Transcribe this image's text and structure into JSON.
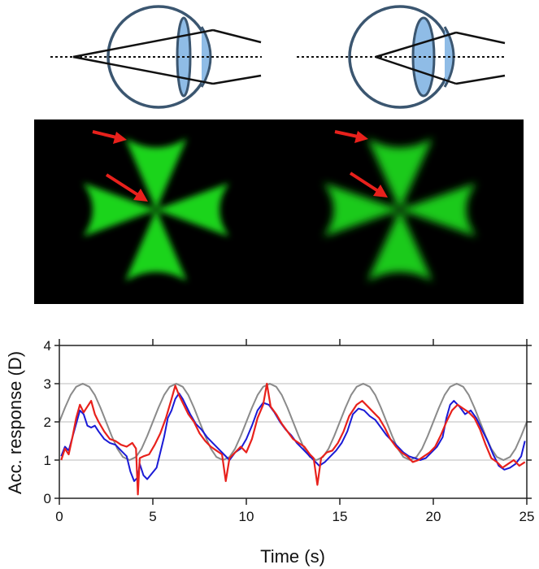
{
  "colors": {
    "eye_outline": "#3b5670",
    "lens_fill": "#8fbce6",
    "ray": "#111111",
    "panel_bg": "#000000",
    "cross_green": "#1fe61f",
    "arrow_red": "#e8211c",
    "target_gray": "#8a8a8a",
    "series_blue": "#1a1ad6",
    "series_red": "#e8211c",
    "grid": "#d2d2d2"
  },
  "chart_data": {
    "type": "line",
    "title": "",
    "xlabel": "Time (s)",
    "ylabel": "Acc. response (D)",
    "xlim": [
      0,
      25
    ],
    "ylim": [
      0,
      4
    ],
    "x_ticks": [
      0,
      5,
      10,
      15,
      20,
      25
    ],
    "y_ticks": [
      0,
      1,
      2,
      3,
      4
    ],
    "grid": "horizontal",
    "series": [
      {
        "color": "#8a8a8a",
        "points": [
          [
            0,
            2.0
          ],
          [
            0.3,
            2.37
          ],
          [
            0.6,
            2.7
          ],
          [
            0.9,
            2.92
          ],
          [
            1.25,
            3.0
          ],
          [
            1.6,
            2.92
          ],
          [
            1.9,
            2.7
          ],
          [
            2.2,
            2.37
          ],
          [
            2.5,
            2.0
          ],
          [
            2.8,
            1.63
          ],
          [
            3.1,
            1.3
          ],
          [
            3.4,
            1.08
          ],
          [
            3.75,
            1.0
          ],
          [
            4.1,
            1.08
          ],
          [
            4.4,
            1.3
          ],
          [
            4.7,
            1.63
          ],
          [
            5.0,
            2.0
          ],
          [
            5.3,
            2.37
          ],
          [
            5.6,
            2.7
          ],
          [
            5.9,
            2.92
          ],
          [
            6.25,
            3.0
          ],
          [
            6.6,
            2.92
          ],
          [
            6.9,
            2.7
          ],
          [
            7.2,
            2.37
          ],
          [
            7.5,
            2.0
          ],
          [
            7.8,
            1.63
          ],
          [
            8.1,
            1.3
          ],
          [
            8.4,
            1.08
          ],
          [
            8.75,
            1.0
          ],
          [
            9.1,
            1.08
          ],
          [
            9.4,
            1.3
          ],
          [
            9.7,
            1.63
          ],
          [
            10.0,
            2.0
          ],
          [
            10.3,
            2.37
          ],
          [
            10.6,
            2.7
          ],
          [
            10.9,
            2.92
          ],
          [
            11.25,
            3.0
          ],
          [
            11.6,
            2.92
          ],
          [
            11.9,
            2.7
          ],
          [
            12.2,
            2.37
          ],
          [
            12.5,
            2.0
          ],
          [
            12.8,
            1.63
          ],
          [
            13.1,
            1.3
          ],
          [
            13.4,
            1.08
          ],
          [
            13.75,
            1.0
          ],
          [
            14.1,
            1.08
          ],
          [
            14.4,
            1.3
          ],
          [
            14.7,
            1.63
          ],
          [
            15.0,
            2.0
          ],
          [
            15.3,
            2.37
          ],
          [
            15.6,
            2.7
          ],
          [
            15.9,
            2.92
          ],
          [
            16.25,
            3.0
          ],
          [
            16.6,
            2.92
          ],
          [
            16.9,
            2.7
          ],
          [
            17.2,
            2.37
          ],
          [
            17.5,
            2.0
          ],
          [
            17.8,
            1.63
          ],
          [
            18.1,
            1.3
          ],
          [
            18.4,
            1.08
          ],
          [
            18.75,
            1.0
          ],
          [
            19.1,
            1.08
          ],
          [
            19.4,
            1.3
          ],
          [
            19.7,
            1.63
          ],
          [
            20.0,
            2.0
          ],
          [
            20.3,
            2.37
          ],
          [
            20.6,
            2.7
          ],
          [
            20.9,
            2.92
          ],
          [
            21.25,
            3.0
          ],
          [
            21.6,
            2.92
          ],
          [
            21.9,
            2.7
          ],
          [
            22.2,
            2.37
          ],
          [
            22.5,
            2.0
          ],
          [
            22.8,
            1.63
          ],
          [
            23.1,
            1.3
          ],
          [
            23.4,
            1.08
          ],
          [
            23.75,
            1.0
          ],
          [
            24.1,
            1.08
          ],
          [
            24.4,
            1.3
          ],
          [
            24.7,
            1.63
          ],
          [
            25.0,
            2.0
          ]
        ]
      },
      {
        "color": "#1a1ad6",
        "points": [
          [
            0.1,
            1.1
          ],
          [
            0.3,
            1.35
          ],
          [
            0.5,
            1.25
          ],
          [
            0.7,
            1.6
          ],
          [
            0.9,
            1.95
          ],
          [
            1.1,
            2.3
          ],
          [
            1.3,
            2.2
          ],
          [
            1.5,
            1.9
          ],
          [
            1.7,
            1.85
          ],
          [
            1.9,
            1.9
          ],
          [
            2.1,
            1.75
          ],
          [
            2.4,
            1.55
          ],
          [
            2.7,
            1.45
          ],
          [
            3.0,
            1.4
          ],
          [
            3.3,
            1.25
          ],
          [
            3.6,
            1.1
          ],
          [
            3.8,
            0.7
          ],
          [
            4.0,
            0.45
          ],
          [
            4.2,
            0.55
          ],
          [
            4.3,
            0.9
          ],
          [
            4.5,
            0.6
          ],
          [
            4.7,
            0.5
          ],
          [
            5.2,
            0.8
          ],
          [
            5.4,
            1.2
          ],
          [
            5.6,
            1.6
          ],
          [
            5.8,
            2.1
          ],
          [
            6.0,
            2.3
          ],
          [
            6.2,
            2.6
          ],
          [
            6.4,
            2.75
          ],
          [
            6.6,
            2.6
          ],
          [
            6.8,
            2.4
          ],
          [
            7.0,
            2.2
          ],
          [
            7.3,
            1.95
          ],
          [
            7.6,
            1.8
          ],
          [
            7.9,
            1.6
          ],
          [
            8.2,
            1.45
          ],
          [
            8.5,
            1.3
          ],
          [
            8.8,
            1.15
          ],
          [
            9.1,
            1.0
          ],
          [
            9.4,
            1.2
          ],
          [
            9.7,
            1.3
          ],
          [
            10.0,
            1.55
          ],
          [
            10.3,
            1.9
          ],
          [
            10.6,
            2.3
          ],
          [
            10.9,
            2.5
          ],
          [
            11.2,
            2.45
          ],
          [
            11.5,
            2.25
          ],
          [
            11.8,
            2.0
          ],
          [
            12.1,
            1.8
          ],
          [
            12.4,
            1.65
          ],
          [
            12.7,
            1.45
          ],
          [
            13.0,
            1.3
          ],
          [
            13.3,
            1.15
          ],
          [
            13.6,
            1.0
          ],
          [
            13.9,
            0.85
          ],
          [
            14.2,
            0.95
          ],
          [
            14.5,
            1.1
          ],
          [
            14.8,
            1.25
          ],
          [
            15.1,
            1.45
          ],
          [
            15.4,
            1.75
          ],
          [
            15.7,
            2.2
          ],
          [
            16.0,
            2.35
          ],
          [
            16.3,
            2.3
          ],
          [
            16.6,
            2.15
          ],
          [
            16.9,
            2.05
          ],
          [
            17.2,
            1.85
          ],
          [
            17.5,
            1.65
          ],
          [
            17.8,
            1.5
          ],
          [
            18.1,
            1.35
          ],
          [
            18.4,
            1.2
          ],
          [
            18.7,
            1.1
          ],
          [
            19.0,
            1.05
          ],
          [
            19.3,
            1.0
          ],
          [
            19.6,
            1.05
          ],
          [
            19.9,
            1.2
          ],
          [
            20.2,
            1.35
          ],
          [
            20.5,
            1.6
          ],
          [
            20.7,
            2.1
          ],
          [
            20.9,
            2.45
          ],
          [
            21.1,
            2.55
          ],
          [
            21.4,
            2.4
          ],
          [
            21.7,
            2.2
          ],
          [
            22.0,
            2.3
          ],
          [
            22.3,
            2.1
          ],
          [
            22.6,
            1.8
          ],
          [
            22.9,
            1.5
          ],
          [
            23.2,
            1.15
          ],
          [
            23.5,
            0.85
          ],
          [
            23.8,
            0.75
          ],
          [
            24.1,
            0.8
          ],
          [
            24.4,
            0.9
          ],
          [
            24.7,
            1.1
          ],
          [
            24.9,
            1.5
          ]
        ]
      },
      {
        "color": "#e8211c",
        "points": [
          [
            0.1,
            1.0
          ],
          [
            0.3,
            1.3
          ],
          [
            0.5,
            1.15
          ],
          [
            0.7,
            1.6
          ],
          [
            0.9,
            2.1
          ],
          [
            1.1,
            2.45
          ],
          [
            1.3,
            2.25
          ],
          [
            1.5,
            2.4
          ],
          [
            1.7,
            2.55
          ],
          [
            1.9,
            2.2
          ],
          [
            2.1,
            2.0
          ],
          [
            2.4,
            1.75
          ],
          [
            2.7,
            1.55
          ],
          [
            3.0,
            1.5
          ],
          [
            3.3,
            1.4
          ],
          [
            3.6,
            1.35
          ],
          [
            3.9,
            1.45
          ],
          [
            4.1,
            1.3
          ],
          [
            4.2,
            0.1
          ],
          [
            4.3,
            1.05
          ],
          [
            4.5,
            1.1
          ],
          [
            4.8,
            1.15
          ],
          [
            5.1,
            1.4
          ],
          [
            5.4,
            1.7
          ],
          [
            5.7,
            2.1
          ],
          [
            6.0,
            2.6
          ],
          [
            6.2,
            2.95
          ],
          [
            6.4,
            2.7
          ],
          [
            6.6,
            2.5
          ],
          [
            6.9,
            2.2
          ],
          [
            7.2,
            2.0
          ],
          [
            7.5,
            1.7
          ],
          [
            7.8,
            1.5
          ],
          [
            8.1,
            1.35
          ],
          [
            8.4,
            1.25
          ],
          [
            8.7,
            1.15
          ],
          [
            8.9,
            0.45
          ],
          [
            9.1,
            1.05
          ],
          [
            9.4,
            1.2
          ],
          [
            9.7,
            1.35
          ],
          [
            10.0,
            1.2
          ],
          [
            10.3,
            1.55
          ],
          [
            10.6,
            2.1
          ],
          [
            10.9,
            2.45
          ],
          [
            11.1,
            3.0
          ],
          [
            11.3,
            2.4
          ],
          [
            11.6,
            2.2
          ],
          [
            11.9,
            1.95
          ],
          [
            12.2,
            1.75
          ],
          [
            12.5,
            1.55
          ],
          [
            12.8,
            1.45
          ],
          [
            13.1,
            1.35
          ],
          [
            13.4,
            1.15
          ],
          [
            13.6,
            1.05
          ],
          [
            13.8,
            0.35
          ],
          [
            14.0,
            1.05
          ],
          [
            14.3,
            1.2
          ],
          [
            14.6,
            1.25
          ],
          [
            14.9,
            1.45
          ],
          [
            15.2,
            1.75
          ],
          [
            15.5,
            2.15
          ],
          [
            15.7,
            2.3
          ],
          [
            15.9,
            2.45
          ],
          [
            16.2,
            2.55
          ],
          [
            16.5,
            2.4
          ],
          [
            16.8,
            2.25
          ],
          [
            17.1,
            2.1
          ],
          [
            17.4,
            1.85
          ],
          [
            17.7,
            1.55
          ],
          [
            18.0,
            1.35
          ],
          [
            18.3,
            1.2
          ],
          [
            18.6,
            1.1
          ],
          [
            18.9,
            0.95
          ],
          [
            19.2,
            1.0
          ],
          [
            19.5,
            1.1
          ],
          [
            19.8,
            1.2
          ],
          [
            20.1,
            1.35
          ],
          [
            20.4,
            1.65
          ],
          [
            20.7,
            2.0
          ],
          [
            21.0,
            2.3
          ],
          [
            21.3,
            2.45
          ],
          [
            21.6,
            2.35
          ],
          [
            21.9,
            2.25
          ],
          [
            22.2,
            2.1
          ],
          [
            22.5,
            1.8
          ],
          [
            22.8,
            1.4
          ],
          [
            23.1,
            1.05
          ],
          [
            23.4,
            0.95
          ],
          [
            23.7,
            0.8
          ],
          [
            24.0,
            0.9
          ],
          [
            24.3,
            1.0
          ],
          [
            24.6,
            0.85
          ],
          [
            24.9,
            0.95
          ]
        ]
      }
    ]
  }
}
